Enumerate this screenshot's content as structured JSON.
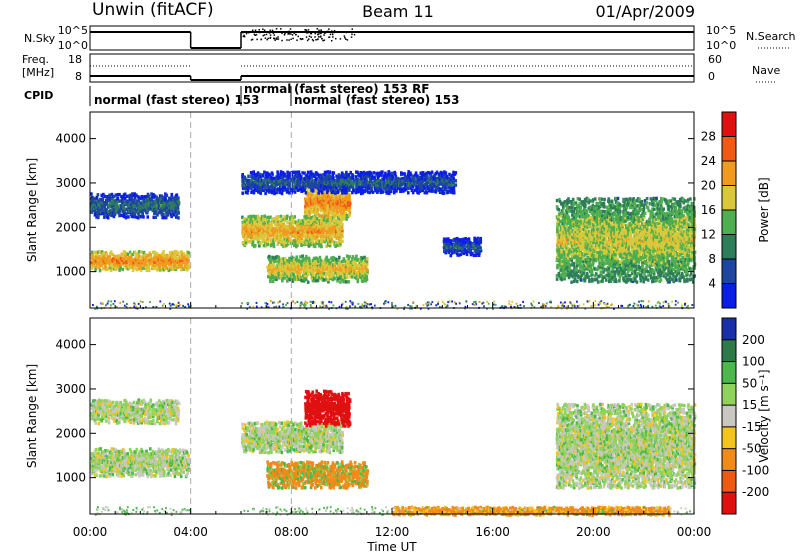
{
  "header": {
    "station": "Unwin (fitACF)",
    "beam": "Beam 11",
    "date": "01/Apr/2009"
  },
  "status_panel": {
    "left_row1_label": "N.Sky",
    "left_row1_ticks": [
      "10^5",
      "10^0"
    ],
    "right_row1_ticks": [
      "10^5",
      "10^0"
    ],
    "right_row1_label": "N.Search",
    "left_row2_label_line1": "Freq.",
    "left_row2_label_line2": "[MHz]",
    "left_row2_ticks": [
      "18",
      "8"
    ],
    "right_row2_ticks": [
      "60",
      "0"
    ],
    "right_row2_label": "Nave",
    "cpid_label": "CPID",
    "cpid_segments": [
      {
        "text": "normal (fast stereo) 153",
        "start_h": 0.0
      },
      {
        "text": "normal",
        "start_h": 6.0
      },
      {
        "text": "(fast stereo) 153 RF",
        "start_h": 8.05
      },
      {
        "text": "normal (fast stereo) 153",
        "start_h": 8.05
      }
    ],
    "data_gap_hours": [
      4.0,
      6.0
    ]
  },
  "x_axis": {
    "label": "Time UT",
    "tick_labels": [
      "00:00",
      "04:00",
      "08:00",
      "12:00",
      "16:00",
      "20:00",
      "00:00"
    ],
    "tick_hours": [
      0,
      4,
      8,
      12,
      16,
      20,
      24
    ],
    "range_hours": [
      0,
      24
    ]
  },
  "chart_data": [
    {
      "type": "heatmap",
      "name": "power",
      "ylabel": "Slant Range [km]",
      "yticks": [
        1000,
        2000,
        3000,
        4000
      ],
      "ylim": [
        180,
        4600
      ],
      "xlim": [
        0,
        24
      ],
      "colorbar_label": "Power [dB]",
      "colorbar_ticks": [
        4,
        8,
        12,
        16,
        20,
        24,
        28
      ],
      "colorbar_range": [
        0,
        32
      ],
      "colorbar_colors": [
        "#0a1ee6",
        "#1e46a0",
        "#2e7d5a",
        "#4fae4f",
        "#d8c83a",
        "#f09a20",
        "#ef5a14",
        "#e11010"
      ],
      "dashed_lines_hours": [
        4.0,
        8.0
      ],
      "echo_regions": [
        {
          "feature": "E-region band",
          "t0": 0.0,
          "t1": 3.9,
          "r0": 1060,
          "r1": 1500,
          "level": 22
        },
        {
          "feature": "upper scatter",
          "t0": 0.0,
          "t1": 3.5,
          "r0": 2250,
          "r1": 2800,
          "level": 8
        },
        {
          "feature": "morning F band",
          "t0": 6.0,
          "t1": 10.0,
          "r0": 1600,
          "r1": 2300,
          "level": 20
        },
        {
          "feature": "dense bottom echo",
          "t0": 7.0,
          "t1": 11.0,
          "r0": 800,
          "r1": 1400,
          "level": 18
        },
        {
          "feature": "sheared streak",
          "t0": 8.5,
          "t1": 10.3,
          "r0": 2200,
          "r1": 3000,
          "level": 22
        },
        {
          "feature": "high range patches",
          "t0": 6.0,
          "t1": 14.5,
          "r0": 2800,
          "r1": 3300,
          "level": 6
        },
        {
          "feature": "late patch",
          "t0": 14.0,
          "t1": 15.5,
          "r0": 1400,
          "r1": 1800,
          "level": 6
        },
        {
          "feature": "evening band",
          "t0": 18.5,
          "t1": 24.0,
          "r0": 800,
          "r1": 2700,
          "level": 16
        }
      ]
    },
    {
      "type": "heatmap",
      "name": "velocity",
      "ylabel": "Slant Range [km]",
      "yticks": [
        1000,
        2000,
        3000,
        4000
      ],
      "ylim": [
        180,
        4600
      ],
      "xlim": [
        0,
        24
      ],
      "colorbar_label": "Velocity [m s⁻¹]",
      "colorbar_ticks": [
        200,
        100,
        50,
        15,
        -15,
        -50,
        -100,
        -200
      ],
      "colorbar_colors": [
        "#1a2ea8",
        "#2e7a48",
        "#4ab84a",
        "#8fd35a",
        "#c8c8c0",
        "#f2c41e",
        "#f08a18",
        "#ec5a14",
        "#e11010"
      ],
      "dashed_lines_hours": [
        4.0,
        8.0
      ],
      "echo_regions": [
        {
          "feature": "ground scatter band",
          "t0": 0.0,
          "t1": 3.9,
          "r0": 1060,
          "r1": 1700,
          "velocity": 0
        },
        {
          "feature": "upper scatter",
          "t0": 0.0,
          "t1": 3.5,
          "r0": 2250,
          "r1": 2800,
          "velocity": 0
        },
        {
          "feature": "morning grey",
          "t0": 6.0,
          "t1": 10.0,
          "r0": 1600,
          "r1": 2300,
          "velocity": 0
        },
        {
          "feature": "striped echo",
          "t0": 7.0,
          "t1": 11.0,
          "r0": 800,
          "r1": 1400,
          "velocity": -40
        },
        {
          "feature": "negative streak",
          "t0": 8.5,
          "t1": 10.3,
          "r0": 2200,
          "r1": 3000,
          "velocity": -200
        },
        {
          "feature": "evening band",
          "t0": 18.5,
          "t1": 24.0,
          "r0": 800,
          "r1": 2700,
          "velocity": 0
        },
        {
          "feature": "low range orange",
          "t0": 12.0,
          "t1": 23.0,
          "r0": 190,
          "r1": 380,
          "velocity": -60
        }
      ]
    }
  ]
}
